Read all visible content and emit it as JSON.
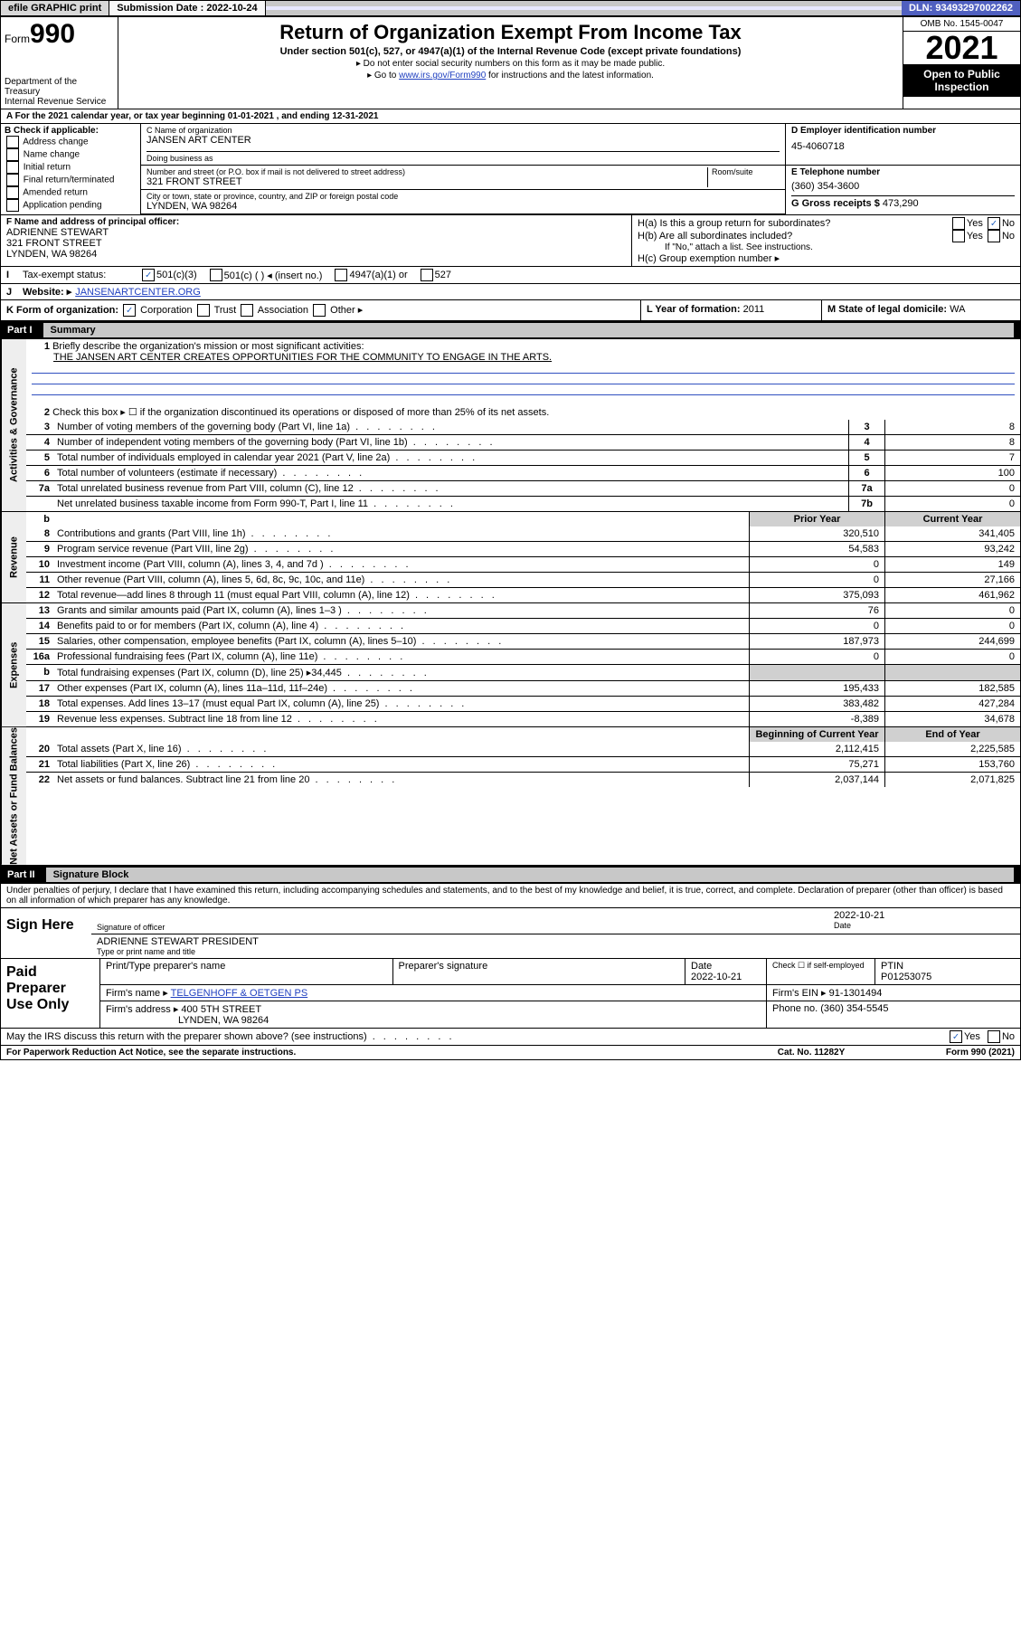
{
  "topbar": {
    "efile": "efile GRAPHIC print",
    "subdate_label": "Submission Date : 2022-10-24",
    "dln": "DLN: 93493297002262"
  },
  "header": {
    "form_prefix": "Form",
    "form_num": "990",
    "dept": "Department of the Treasury",
    "irs": "Internal Revenue Service",
    "title": "Return of Organization Exempt From Income Tax",
    "sub": "Under section 501(c), 527, or 4947(a)(1) of the Internal Revenue Code (except private foundations)",
    "note1": "▸ Do not enter social security numbers on this form as it may be made public.",
    "note2_pre": "▸ Go to ",
    "note2_link": "www.irs.gov/Form990",
    "note2_post": " for instructions and the latest information.",
    "omb": "OMB No. 1545-0047",
    "year": "2021",
    "open": "Open to Public Inspection"
  },
  "lineA": "A For the 2021 calendar year, or tax year beginning 01-01-2021  , and ending 12-31-2021",
  "colB": {
    "hdr": "B Check if applicable:",
    "items": [
      "Address change",
      "Name change",
      "Initial return",
      "Final return/terminated",
      "Amended return",
      "Application pending"
    ]
  },
  "colC": {
    "name_lbl": "C Name of organization",
    "name": "JANSEN ART CENTER",
    "dba_lbl": "Doing business as",
    "dba": "",
    "addr_lbl": "Number and street (or P.O. box if mail is not delivered to street address)",
    "addr": "321 FRONT STREET",
    "suite_lbl": "Room/suite",
    "city_lbl": "City or town, state or province, country, and ZIP or foreign postal code",
    "city": "LYNDEN, WA  98264"
  },
  "colD": {
    "ein_lbl": "D Employer identification number",
    "ein": "45-4060718",
    "tel_lbl": "E Telephone number",
    "tel": "(360) 354-3600",
    "gross_lbl": "G Gross receipts $",
    "gross": "473,290"
  },
  "blockF": {
    "lbl": "F Name and address of principal officer:",
    "name": "ADRIENNE STEWART",
    "addr1": "321 FRONT STREET",
    "addr2": "LYNDEN, WA  98264"
  },
  "blockH": {
    "a_lbl": "H(a)  Is this a group return for subordinates?",
    "b_lbl": "H(b)  Are all subordinates included?",
    "b_note": "If \"No,\" attach a list. See instructions.",
    "c_lbl": "H(c)  Group exemption number ▸",
    "yes": "Yes",
    "no": "No"
  },
  "lineI": {
    "lbl": "Tax-exempt status:",
    "opts": [
      "501(c)(3)",
      "501(c) (  ) ◂ (insert no.)",
      "4947(a)(1) or",
      "527"
    ]
  },
  "lineJ": {
    "lbl": "Website: ▸",
    "val": "JANSENARTCENTER.ORG"
  },
  "lineK": {
    "lbl": "K Form of organization:",
    "opts": [
      "Corporation",
      "Trust",
      "Association",
      "Other ▸"
    ]
  },
  "lineL": {
    "lbl": "L Year of formation:",
    "val": "2011"
  },
  "lineM": {
    "lbl": "M State of legal domicile:",
    "val": "WA"
  },
  "part1": {
    "hdr": "Part I",
    "title": "Summary",
    "q1_lbl": "Briefly describe the organization's mission or most significant activities:",
    "q1_val": "THE JANSEN ART CENTER CREATES OPPORTUNITIES FOR THE COMMUNITY TO ENGAGE IN THE ARTS.",
    "q2": "Check this box ▸ ☐ if the organization discontinued its operations or disposed of more than 25% of its net assets.",
    "rows_gov": [
      {
        "n": "3",
        "t": "Number of voting members of the governing body (Part VI, line 1a)",
        "b": "3",
        "v": "8"
      },
      {
        "n": "4",
        "t": "Number of independent voting members of the governing body (Part VI, line 1b)",
        "b": "4",
        "v": "8"
      },
      {
        "n": "5",
        "t": "Total number of individuals employed in calendar year 2021 (Part V, line 2a)",
        "b": "5",
        "v": "7"
      },
      {
        "n": "6",
        "t": "Total number of volunteers (estimate if necessary)",
        "b": "6",
        "v": "100"
      },
      {
        "n": "7a",
        "t": "Total unrelated business revenue from Part VIII, column (C), line 12",
        "b": "7a",
        "v": "0"
      },
      {
        "n": "",
        "t": "Net unrelated business taxable income from Form 990-T, Part I, line 11",
        "b": "7b",
        "v": "0"
      }
    ],
    "col_prior": "Prior Year",
    "col_current": "Current Year",
    "rows_rev": [
      {
        "n": "8",
        "t": "Contributions and grants (Part VIII, line 1h)",
        "p": "320,510",
        "c": "341,405"
      },
      {
        "n": "9",
        "t": "Program service revenue (Part VIII, line 2g)",
        "p": "54,583",
        "c": "93,242"
      },
      {
        "n": "10",
        "t": "Investment income (Part VIII, column (A), lines 3, 4, and 7d )",
        "p": "0",
        "c": "149"
      },
      {
        "n": "11",
        "t": "Other revenue (Part VIII, column (A), lines 5, 6d, 8c, 9c, 10c, and 11e)",
        "p": "0",
        "c": "27,166"
      },
      {
        "n": "12",
        "t": "Total revenue—add lines 8 through 11 (must equal Part VIII, column (A), line 12)",
        "p": "375,093",
        "c": "461,962"
      }
    ],
    "rows_exp": [
      {
        "n": "13",
        "t": "Grants and similar amounts paid (Part IX, column (A), lines 1–3 )",
        "p": "76",
        "c": "0"
      },
      {
        "n": "14",
        "t": "Benefits paid to or for members (Part IX, column (A), line 4)",
        "p": "0",
        "c": "0"
      },
      {
        "n": "15",
        "t": "Salaries, other compensation, employee benefits (Part IX, column (A), lines 5–10)",
        "p": "187,973",
        "c": "244,699"
      },
      {
        "n": "16a",
        "t": "Professional fundraising fees (Part IX, column (A), line 11e)",
        "p": "0",
        "c": "0"
      },
      {
        "n": "b",
        "t": "Total fundraising expenses (Part IX, column (D), line 25) ▸34,445",
        "p": "",
        "c": ""
      },
      {
        "n": "17",
        "t": "Other expenses (Part IX, column (A), lines 11a–11d, 11f–24e)",
        "p": "195,433",
        "c": "182,585"
      },
      {
        "n": "18",
        "t": "Total expenses. Add lines 13–17 (must equal Part IX, column (A), line 25)",
        "p": "383,482",
        "c": "427,284"
      },
      {
        "n": "19",
        "t": "Revenue less expenses. Subtract line 18 from line 12",
        "p": "-8,389",
        "c": "34,678"
      }
    ],
    "col_begin": "Beginning of Current Year",
    "col_end": "End of Year",
    "rows_net": [
      {
        "n": "20",
        "t": "Total assets (Part X, line 16)",
        "p": "2,112,415",
        "c": "2,225,585"
      },
      {
        "n": "21",
        "t": "Total liabilities (Part X, line 26)",
        "p": "75,271",
        "c": "153,760"
      },
      {
        "n": "22",
        "t": "Net assets or fund balances. Subtract line 21 from line 20",
        "p": "2,037,144",
        "c": "2,071,825"
      }
    ],
    "vtab_gov": "Activities & Governance",
    "vtab_rev": "Revenue",
    "vtab_exp": "Expenses",
    "vtab_net": "Net Assets or Fund Balances"
  },
  "part2": {
    "hdr": "Part II",
    "title": "Signature Block",
    "decl": "Under penalties of perjury, I declare that I have examined this return, including accompanying schedules and statements, and to the best of my knowledge and belief, it is true, correct, and complete. Declaration of preparer (other than officer) is based on all information of which preparer has any knowledge.",
    "sign_here": "Sign Here",
    "sig_lbl": "Signature of officer",
    "date_lbl": "Date",
    "sig_date": "2022-10-21",
    "name_lbl": "Type or print name and title",
    "name_val": "ADRIENNE STEWART PRESIDENT",
    "paid": "Paid Preparer Use Only",
    "prep_name_lbl": "Print/Type preparer's name",
    "prep_sig_lbl": "Preparer's signature",
    "prep_date_lbl": "Date",
    "prep_date": "2022-10-21",
    "prep_self": "Check ☐ if self-employed",
    "ptin_lbl": "PTIN",
    "ptin": "P01253075",
    "firm_name_lbl": "Firm's name ▸",
    "firm_name": "TELGENHOFF & OETGEN PS",
    "firm_ein_lbl": "Firm's EIN ▸",
    "firm_ein": "91-1301494",
    "firm_addr_lbl": "Firm's address ▸",
    "firm_addr1": "400 5TH STREET",
    "firm_addr2": "LYNDEN, WA  98264",
    "phone_lbl": "Phone no.",
    "phone": "(360) 354-5545",
    "may_irs": "May the IRS discuss this return with the preparer shown above? (see instructions)",
    "yes": "Yes",
    "no": "No"
  },
  "footer": {
    "l": "For Paperwork Reduction Act Notice, see the separate instructions.",
    "m": "Cat. No. 11282Y",
    "r": "Form 990 (2021)"
  }
}
